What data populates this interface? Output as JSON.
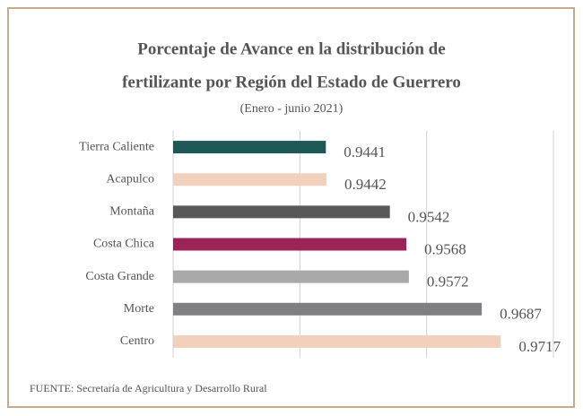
{
  "chart_data": {
    "type": "barh",
    "title": [
      "Porcentaje de Avance en la distribución de",
      "fertilizante por Región del Estado de Guerrero"
    ],
    "subtitle": "(Enero - junio 2021)",
    "categories": [
      "Tierra Caliente",
      "Acapulco",
      "Montaña",
      "Costa Chica",
      "Costa Grande",
      "Morte",
      "Centro"
    ],
    "values": [
      0.9441,
      0.9442,
      0.9542,
      0.9568,
      0.9572,
      0.9687,
      0.9717
    ],
    "colors": [
      "#1d5756",
      "#f1d1bb",
      "#58585a",
      "#9b2457",
      "#a8a8a8",
      "#808082",
      "#f1d1bb"
    ],
    "xlim": [
      0.92,
      0.98
    ],
    "xticks": [
      0.92,
      0.94,
      0.96,
      0.98
    ],
    "grid": true,
    "source": "FUENTE: Secretaría de Agricultura y Desarrollo Rural"
  }
}
